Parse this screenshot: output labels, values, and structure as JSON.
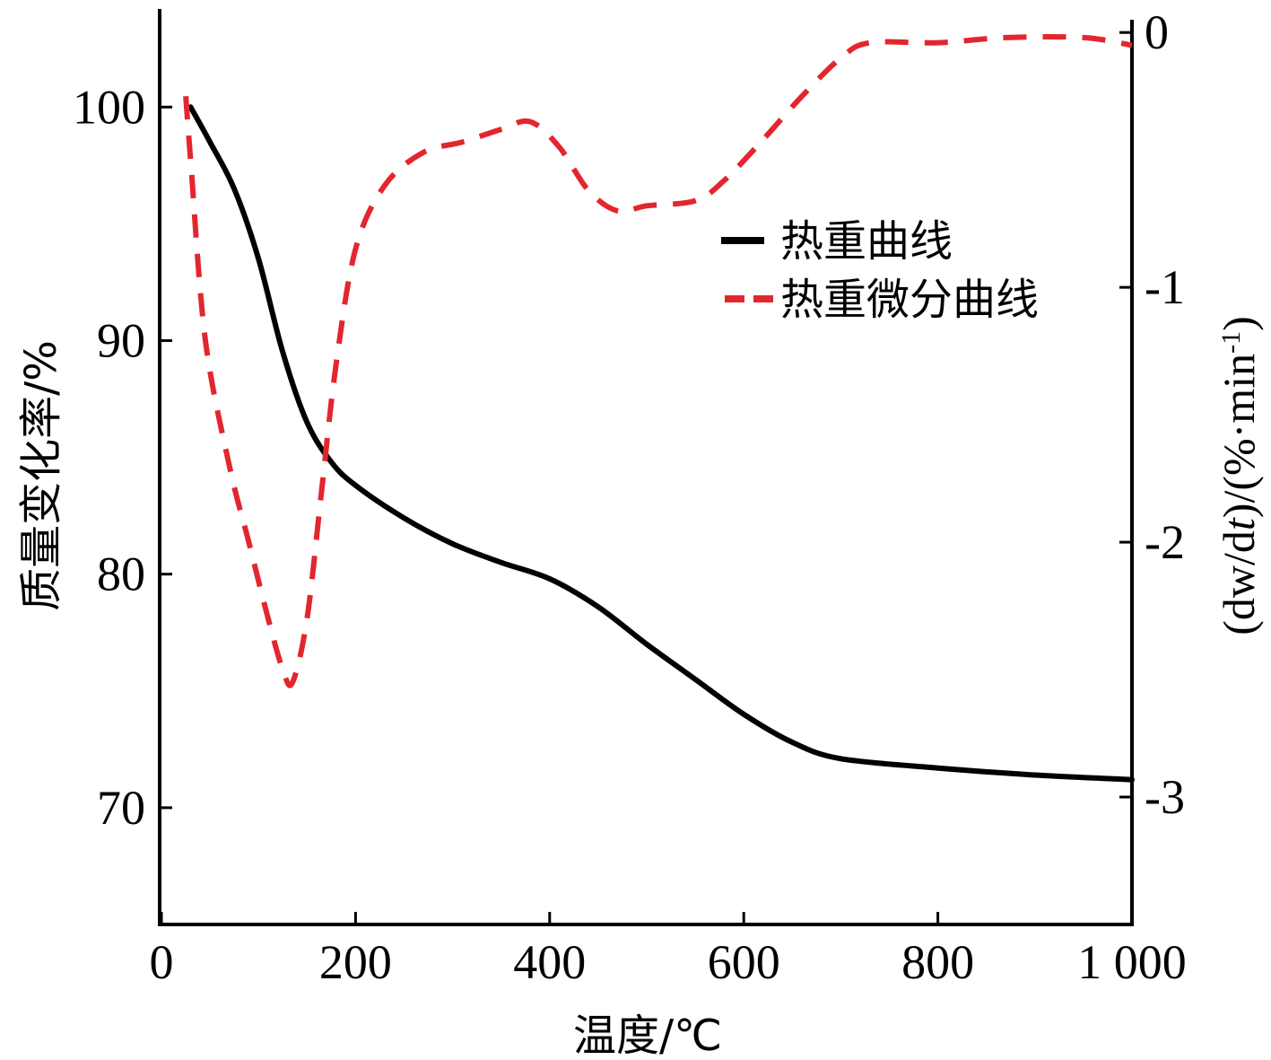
{
  "chart_data": {
    "type": "line",
    "xlabel": "温度/℃",
    "ylabel_left": "质量变化率/%",
    "ylabel_right": "(dw/dt)/(%·min-1)",
    "ylabel_right_parts": {
      "prefix": "(dw/d",
      "t": "t",
      "mid": ")/(%·min",
      "sup": "-1",
      "suffix": ")"
    },
    "xlim": [
      0,
      1000
    ],
    "ylim_left": [
      65,
      104.2
    ],
    "ylim_right": [
      -3.5,
      0.05
    ],
    "x_ticks": [
      0,
      200,
      400,
      600,
      800,
      1000
    ],
    "x_tick_labels": [
      "0",
      "200",
      "400",
      "600",
      "800",
      "1 000"
    ],
    "y_left_ticks": [
      70,
      80,
      90,
      100
    ],
    "y_left_tick_labels": [
      "70",
      "80",
      "90",
      "100"
    ],
    "y_right_ticks": [
      0,
      -1,
      -2,
      -3
    ],
    "y_right_tick_labels": [
      "0",
      "-1",
      "-2",
      "-3"
    ],
    "legend_position": "upper-right",
    "grid": false,
    "series": [
      {
        "name": "热重曲线",
        "axis": "left",
        "color": "#000000",
        "style": "solid",
        "points": [
          [
            30,
            100
          ],
          [
            50,
            98.5
          ],
          [
            75,
            96.5
          ],
          [
            100,
            93.5
          ],
          [
            125,
            89.5
          ],
          [
            150,
            86.5
          ],
          [
            175,
            84.8
          ],
          [
            200,
            83.8
          ],
          [
            250,
            82.4
          ],
          [
            300,
            81.3
          ],
          [
            350,
            80.5
          ],
          [
            400,
            79.8
          ],
          [
            450,
            78.6
          ],
          [
            500,
            77
          ],
          [
            550,
            75.5
          ],
          [
            600,
            74
          ],
          [
            650,
            72.8
          ],
          [
            700,
            72.1
          ],
          [
            800,
            71.7
          ],
          [
            900,
            71.4
          ],
          [
            1000,
            71.2
          ]
        ]
      },
      {
        "name": "热重微分曲线",
        "axis": "right",
        "color": "#e3262e",
        "style": "dashed",
        "points": [
          [
            25,
            -0.25
          ],
          [
            30,
            -0.5
          ],
          [
            45,
            -1.2
          ],
          [
            70,
            -1.7
          ],
          [
            90,
            -2
          ],
          [
            110,
            -2.3
          ],
          [
            125,
            -2.5
          ],
          [
            135,
            -2.55
          ],
          [
            150,
            -2.3
          ],
          [
            165,
            -1.8
          ],
          [
            180,
            -1.3
          ],
          [
            200,
            -0.85
          ],
          [
            230,
            -0.6
          ],
          [
            270,
            -0.47
          ],
          [
            310,
            -0.43
          ],
          [
            350,
            -0.38
          ],
          [
            380,
            -0.35
          ],
          [
            410,
            -0.45
          ],
          [
            440,
            -0.62
          ],
          [
            470,
            -0.7
          ],
          [
            500,
            -0.68
          ],
          [
            550,
            -0.66
          ],
          [
            580,
            -0.58
          ],
          [
            620,
            -0.42
          ],
          [
            660,
            -0.25
          ],
          [
            700,
            -0.1
          ],
          [
            730,
            -0.04
          ],
          [
            800,
            -0.04
          ],
          [
            870,
            -0.02
          ],
          [
            950,
            -0.02
          ],
          [
            1000,
            -0.05
          ]
        ]
      }
    ]
  }
}
